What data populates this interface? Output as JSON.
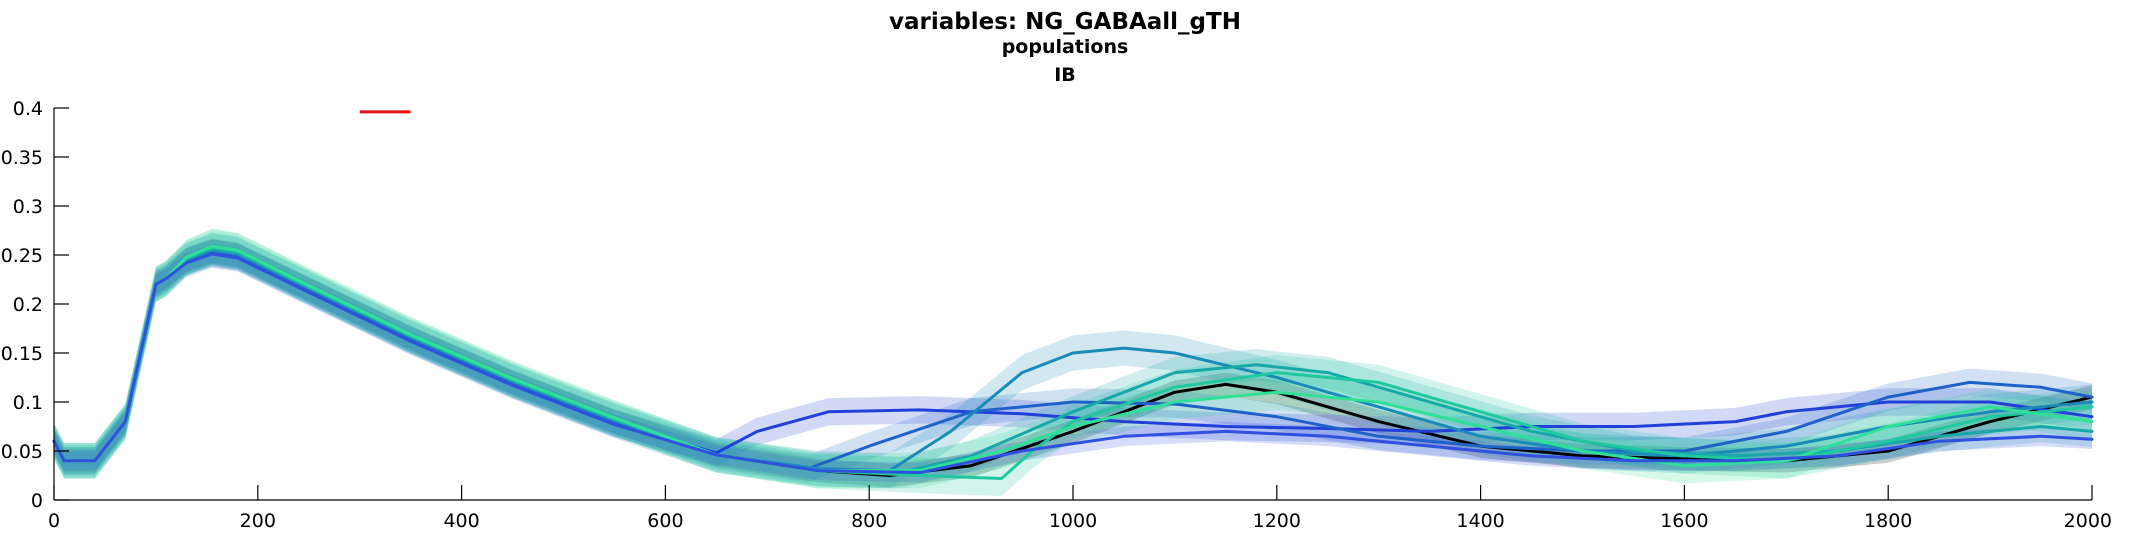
{
  "chart_data": {
    "type": "line",
    "title": "variables: NG_GABAall_gTH",
    "subtitle_1": "populations",
    "subtitle_2": "IB",
    "xlabel": "",
    "ylabel": "",
    "xlim": [
      0,
      2000
    ],
    "ylim": [
      0,
      0.4
    ],
    "x_ticks": [
      0,
      200,
      400,
      600,
      800,
      1000,
      1200,
      1400,
      1600,
      1800,
      2000
    ],
    "x_tick_labels": [
      "0",
      "200",
      "400",
      "600",
      "800",
      "1000",
      "1200",
      "1400",
      "1600",
      "1800",
      "2000"
    ],
    "y_ticks": [
      0,
      0.05,
      0.1,
      0.15,
      0.2,
      0.25,
      0.3,
      0.35,
      0.4
    ],
    "y_tick_labels": [
      "0",
      "0.05",
      "0.1",
      "0.15",
      "0.2",
      "0.25",
      "0.3",
      "0.35",
      "0.4"
    ],
    "grid": false,
    "marker_line": {
      "x": [
        300,
        350
      ],
      "y": 0.396,
      "color": "#e01010"
    },
    "series": [
      {
        "color": "#000000",
        "band": 0.012,
        "points": [
          [
            0,
            0.06
          ],
          [
            10,
            0.04
          ],
          [
            40,
            0.04
          ],
          [
            70,
            0.08
          ],
          [
            100,
            0.22
          ],
          [
            110,
            0.226
          ],
          [
            130,
            0.245
          ],
          [
            155,
            0.254
          ],
          [
            180,
            0.25
          ],
          [
            250,
            0.215
          ],
          [
            350,
            0.165
          ],
          [
            450,
            0.12
          ],
          [
            550,
            0.08
          ],
          [
            650,
            0.046
          ],
          [
            750,
            0.03
          ],
          [
            820,
            0.025
          ],
          [
            900,
            0.035
          ],
          [
            1000,
            0.07
          ],
          [
            1100,
            0.11
          ],
          [
            1150,
            0.118
          ],
          [
            1200,
            0.11
          ],
          [
            1300,
            0.08
          ],
          [
            1400,
            0.055
          ],
          [
            1500,
            0.045
          ],
          [
            1600,
            0.042
          ],
          [
            1700,
            0.04
          ],
          [
            1800,
            0.05
          ],
          [
            1900,
            0.08
          ],
          [
            2000,
            0.105
          ]
        ]
      },
      {
        "color": "#2040d8",
        "band": 0.014,
        "points": [
          [
            0,
            0.06
          ],
          [
            10,
            0.04
          ],
          [
            40,
            0.04
          ],
          [
            70,
            0.08
          ],
          [
            100,
            0.22
          ],
          [
            110,
            0.226
          ],
          [
            130,
            0.243
          ],
          [
            155,
            0.252
          ],
          [
            180,
            0.248
          ],
          [
            250,
            0.213
          ],
          [
            350,
            0.163
          ],
          [
            450,
            0.118
          ],
          [
            550,
            0.078
          ],
          [
            650,
            0.048
          ],
          [
            690,
            0.07
          ],
          [
            760,
            0.09
          ],
          [
            850,
            0.092
          ],
          [
            950,
            0.088
          ],
          [
            1050,
            0.08
          ],
          [
            1150,
            0.075
          ],
          [
            1250,
            0.073
          ],
          [
            1350,
            0.07
          ],
          [
            1450,
            0.075
          ],
          [
            1550,
            0.075
          ],
          [
            1650,
            0.08
          ],
          [
            1700,
            0.09
          ],
          [
            1800,
            0.1
          ],
          [
            1900,
            0.1
          ],
          [
            2000,
            0.085
          ]
        ]
      },
      {
        "color": "#1e62c8",
        "band": 0.014,
        "points": [
          [
            0,
            0.06
          ],
          [
            10,
            0.04
          ],
          [
            40,
            0.04
          ],
          [
            70,
            0.08
          ],
          [
            100,
            0.22
          ],
          [
            110,
            0.226
          ],
          [
            130,
            0.244
          ],
          [
            155,
            0.253
          ],
          [
            180,
            0.249
          ],
          [
            250,
            0.214
          ],
          [
            350,
            0.164
          ],
          [
            450,
            0.119
          ],
          [
            550,
            0.079
          ],
          [
            650,
            0.046
          ],
          [
            740,
            0.032
          ],
          [
            800,
            0.055
          ],
          [
            900,
            0.09
          ],
          [
            1000,
            0.1
          ],
          [
            1100,
            0.098
          ],
          [
            1200,
            0.085
          ],
          [
            1300,
            0.065
          ],
          [
            1400,
            0.055
          ],
          [
            1500,
            0.05
          ],
          [
            1600,
            0.05
          ],
          [
            1700,
            0.07
          ],
          [
            1800,
            0.105
          ],
          [
            1880,
            0.12
          ],
          [
            1950,
            0.115
          ],
          [
            2000,
            0.105
          ]
        ]
      },
      {
        "color": "#1a8ab8",
        "band": 0.018,
        "points": [
          [
            0,
            0.06
          ],
          [
            10,
            0.04
          ],
          [
            40,
            0.04
          ],
          [
            70,
            0.08
          ],
          [
            100,
            0.22
          ],
          [
            110,
            0.226
          ],
          [
            130,
            0.245
          ],
          [
            155,
            0.255
          ],
          [
            180,
            0.251
          ],
          [
            250,
            0.216
          ],
          [
            350,
            0.166
          ],
          [
            450,
            0.121
          ],
          [
            550,
            0.081
          ],
          [
            650,
            0.046
          ],
          [
            750,
            0.032
          ],
          [
            820,
            0.03
          ],
          [
            880,
            0.07
          ],
          [
            950,
            0.13
          ],
          [
            1000,
            0.15
          ],
          [
            1050,
            0.155
          ],
          [
            1100,
            0.15
          ],
          [
            1200,
            0.125
          ],
          [
            1300,
            0.095
          ],
          [
            1400,
            0.065
          ],
          [
            1500,
            0.05
          ],
          [
            1600,
            0.045
          ],
          [
            1700,
            0.055
          ],
          [
            1800,
            0.075
          ],
          [
            1900,
            0.09
          ],
          [
            2000,
            0.1
          ]
        ]
      },
      {
        "color": "#18a8a8",
        "band": 0.016,
        "points": [
          [
            0,
            0.06
          ],
          [
            10,
            0.04
          ],
          [
            40,
            0.04
          ],
          [
            70,
            0.08
          ],
          [
            100,
            0.22
          ],
          [
            110,
            0.226
          ],
          [
            130,
            0.246
          ],
          [
            155,
            0.256
          ],
          [
            180,
            0.252
          ],
          [
            250,
            0.217
          ],
          [
            350,
            0.167
          ],
          [
            450,
            0.122
          ],
          [
            550,
            0.082
          ],
          [
            650,
            0.046
          ],
          [
            750,
            0.03
          ],
          [
            830,
            0.028
          ],
          [
            900,
            0.045
          ],
          [
            1000,
            0.09
          ],
          [
            1100,
            0.13
          ],
          [
            1180,
            0.138
          ],
          [
            1250,
            0.13
          ],
          [
            1350,
            0.1
          ],
          [
            1450,
            0.07
          ],
          [
            1550,
            0.05
          ],
          [
            1650,
            0.045
          ],
          [
            1750,
            0.05
          ],
          [
            1850,
            0.065
          ],
          [
            1950,
            0.075
          ],
          [
            2000,
            0.07
          ]
        ]
      },
      {
        "color": "#20c8a0",
        "band": 0.018,
        "points": [
          [
            0,
            0.06
          ],
          [
            10,
            0.04
          ],
          [
            40,
            0.04
          ],
          [
            70,
            0.08
          ],
          [
            100,
            0.22
          ],
          [
            110,
            0.226
          ],
          [
            130,
            0.247
          ],
          [
            155,
            0.258
          ],
          [
            180,
            0.254
          ],
          [
            250,
            0.218
          ],
          [
            350,
            0.168
          ],
          [
            450,
            0.123
          ],
          [
            550,
            0.083
          ],
          [
            650,
            0.046
          ],
          [
            750,
            0.03
          ],
          [
            850,
            0.025
          ],
          [
            930,
            0.022
          ],
          [
            960,
            0.05
          ],
          [
            1000,
            0.08
          ],
          [
            1100,
            0.115
          ],
          [
            1200,
            0.13
          ],
          [
            1300,
            0.12
          ],
          [
            1400,
            0.09
          ],
          [
            1500,
            0.06
          ],
          [
            1600,
            0.045
          ],
          [
            1700,
            0.04
          ],
          [
            1800,
            0.06
          ],
          [
            1900,
            0.085
          ],
          [
            2000,
            0.095
          ]
        ]
      },
      {
        "color": "#30e098",
        "band": 0.018,
        "points": [
          [
            0,
            0.06
          ],
          [
            10,
            0.04
          ],
          [
            40,
            0.04
          ],
          [
            70,
            0.08
          ],
          [
            100,
            0.22
          ],
          [
            110,
            0.226
          ],
          [
            130,
            0.248
          ],
          [
            155,
            0.259
          ],
          [
            180,
            0.255
          ],
          [
            250,
            0.219
          ],
          [
            350,
            0.169
          ],
          [
            450,
            0.124
          ],
          [
            550,
            0.084
          ],
          [
            650,
            0.046
          ],
          [
            750,
            0.03
          ],
          [
            850,
            0.03
          ],
          [
            930,
            0.05
          ],
          [
            1000,
            0.075
          ],
          [
            1100,
            0.1
          ],
          [
            1200,
            0.11
          ],
          [
            1300,
            0.1
          ],
          [
            1400,
            0.075
          ],
          [
            1500,
            0.05
          ],
          [
            1600,
            0.035
          ],
          [
            1700,
            0.04
          ],
          [
            1800,
            0.075
          ],
          [
            1900,
            0.095
          ],
          [
            2000,
            0.08
          ]
        ]
      },
      {
        "color": "#3050e0",
        "band": 0.01,
        "points": [
          [
            0,
            0.06
          ],
          [
            10,
            0.04
          ],
          [
            40,
            0.04
          ],
          [
            70,
            0.08
          ],
          [
            100,
            0.22
          ],
          [
            110,
            0.226
          ],
          [
            130,
            0.242
          ],
          [
            155,
            0.251
          ],
          [
            180,
            0.247
          ],
          [
            250,
            0.212
          ],
          [
            350,
            0.162
          ],
          [
            450,
            0.117
          ],
          [
            550,
            0.077
          ],
          [
            650,
            0.046
          ],
          [
            750,
            0.03
          ],
          [
            850,
            0.028
          ],
          [
            950,
            0.05
          ],
          [
            1050,
            0.065
          ],
          [
            1150,
            0.07
          ],
          [
            1250,
            0.065
          ],
          [
            1350,
            0.055
          ],
          [
            1450,
            0.045
          ],
          [
            1550,
            0.04
          ],
          [
            1650,
            0.04
          ],
          [
            1750,
            0.045
          ],
          [
            1850,
            0.06
          ],
          [
            1950,
            0.065
          ],
          [
            2000,
            0.062
          ]
        ]
      }
    ]
  }
}
